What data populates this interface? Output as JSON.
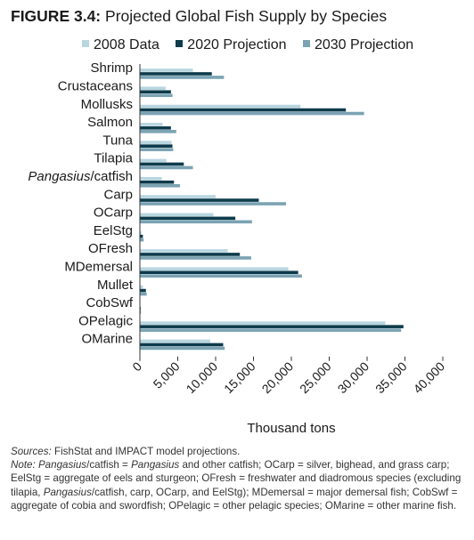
{
  "header": {
    "figure_label": "FIGURE 3.4:",
    "title": "Projected Global Fish Supply by Species"
  },
  "colors": {
    "s2008": "#b8d6e0",
    "s2020": "#0d3b4c",
    "s2030": "#7ba3b3"
  },
  "chart_data": {
    "type": "bar",
    "orientation": "horizontal",
    "title": "Projected Global Fish Supply by Species",
    "xlabel": "Thousand tons",
    "ylabel": "",
    "xlim": [
      0,
      40000
    ],
    "xticks": [
      5000,
      10000,
      15000,
      20000,
      25000,
      30000,
      35000,
      40000
    ],
    "xtick_labels": [
      "5,000",
      "10,000",
      "15,000",
      "20,000",
      "25,000",
      "30,000",
      "35,000",
      "40,000"
    ],
    "legend_position": "top",
    "grid": false,
    "categories": [
      "Shrimp",
      "Crustaceans",
      "Mollusks",
      "Salmon",
      "Tuna",
      "Tilapia",
      "Pangasius/catfish",
      "Carp",
      "OCarp",
      "EelStg",
      "OFresh",
      "MDemersal",
      "Mullet",
      "CobSwf",
      "OPelagic",
      "OMarine"
    ],
    "series": [
      {
        "name": "2008 Data",
        "values": [
          7000,
          3400,
          21200,
          3000,
          4200,
          3500,
          2900,
          10000,
          9700,
          200,
          11600,
          19600,
          400,
          50,
          32400,
          9300
        ]
      },
      {
        "name": "2020 Projection",
        "values": [
          9500,
          4100,
          27200,
          4100,
          4300,
          5800,
          4500,
          15700,
          12600,
          400,
          13200,
          20900,
          800,
          100,
          34800,
          11000
        ]
      },
      {
        "name": "2030 Projection",
        "values": [
          11100,
          4300,
          29600,
          4800,
          4400,
          7000,
          5300,
          19300,
          14800,
          500,
          14700,
          21400,
          900,
          150,
          34500,
          11200
        ]
      }
    ]
  },
  "notes": {
    "sources_label": "Sources:",
    "sources_text": " FishStat and IMPACT model projections.",
    "note_label": "Note:",
    "note_pangasius": "Pangasius",
    "note_part1": "/catfish = ",
    "note_pangasius2": "Pangasius",
    "note_part2": " and other catfish; OCarp = silver, bighead, and grass carp; EelStg = aggregate of eels and sturgeon; OFresh = freshwater and diadromous species (excluding tilapia, ",
    "note_pangasius3": "Pangasius",
    "note_part3": "/catfish, carp, OCarp, and EelStg); MDemersal = major demersal fish; CobSwf = aggregate of cobia and swordfish; OPelagic = other pelagic species; OMarine = other marine fish."
  }
}
